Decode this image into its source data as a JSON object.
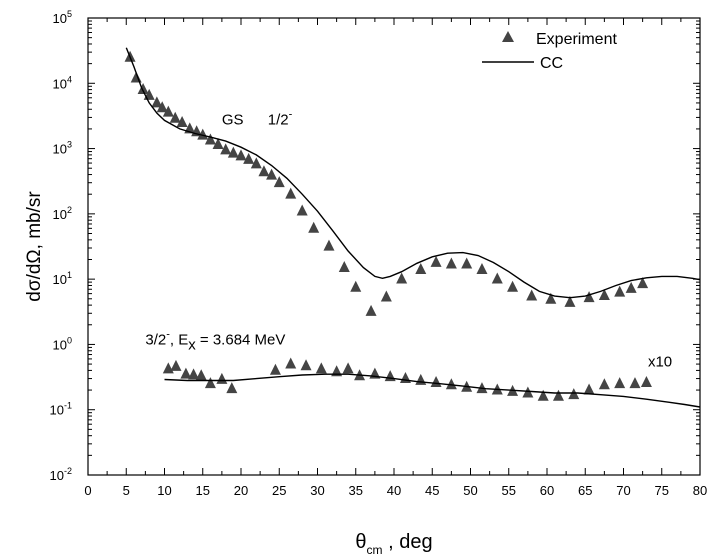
{
  "chart_data": {
    "type": "scatter",
    "xlabel": "θ",
    "xlabel_sub": "cm",
    "xlabel_suffix": " , deg",
    "ylabel": "dσ/dΩ, mb/sr",
    "xlim": [
      0,
      80
    ],
    "ylim": [
      0.01,
      100000
    ],
    "yscale": "log",
    "x_ticks": [
      0,
      5,
      10,
      15,
      20,
      25,
      30,
      35,
      40,
      45,
      50,
      55,
      60,
      65,
      70,
      75,
      80
    ],
    "y_ticks": [
      {
        "value": 0.01,
        "base": "10",
        "exp": "-2"
      },
      {
        "value": 0.1,
        "base": "10",
        "exp": "-1"
      },
      {
        "value": 1,
        "base": "10",
        "exp": "0"
      },
      {
        "value": 10,
        "base": "10",
        "exp": "1"
      },
      {
        "value": 100,
        "base": "10",
        "exp": "2"
      },
      {
        "value": 1000,
        "base": "10",
        "exp": "3"
      },
      {
        "value": 10000,
        "base": "10",
        "exp": "4"
      },
      {
        "value": 100000,
        "base": "10",
        "exp": "5"
      }
    ],
    "legend": {
      "position": "top-right",
      "entries": [
        {
          "label": "Experiment",
          "marker": "triangle"
        },
        {
          "label": "CC",
          "marker": "line"
        }
      ]
    },
    "annotations": {
      "gs": {
        "text": "GS",
        "x": 17.5,
        "y": 2800
      },
      "gs_spin": {
        "text": "1/2",
        "sup": "-",
        "x": 23.5,
        "y": 2800
      },
      "excited": {
        "part1": "3/2",
        "sup": "-",
        "part2": ", E",
        "sub": "x",
        "part3": " = 3.684 MeV",
        "x": 7.5,
        "y": 1.2
      },
      "scale": {
        "text": "x10",
        "x": 73.2,
        "y": 0.55
      }
    },
    "colors": {
      "markers": "#444444",
      "line": "#000000",
      "frame": "#000000"
    },
    "series": [
      {
        "name": "Experiment",
        "kind": "markers",
        "points": [
          [
            5.5,
            25000
          ],
          [
            6.3,
            12000
          ],
          [
            7.2,
            8000
          ],
          [
            8.0,
            6500
          ],
          [
            9.0,
            5000
          ],
          [
            9.7,
            4200
          ],
          [
            10.5,
            3600
          ],
          [
            11.4,
            2900
          ],
          [
            12.3,
            2500
          ],
          [
            13.3,
            2000
          ],
          [
            14.2,
            1800
          ],
          [
            15.0,
            1600
          ],
          [
            16.0,
            1350
          ],
          [
            17.0,
            1150
          ],
          [
            18.0,
            950
          ],
          [
            19.0,
            850
          ],
          [
            20.0,
            770
          ],
          [
            21.0,
            680
          ],
          [
            22.0,
            580
          ],
          [
            23.0,
            440
          ],
          [
            24.0,
            390
          ],
          [
            25.0,
            300
          ],
          [
            26.5,
            200
          ],
          [
            28.0,
            110
          ],
          [
            29.5,
            60
          ],
          [
            31.5,
            32
          ],
          [
            33.5,
            15
          ],
          [
            35.0,
            7.5
          ],
          [
            37.0,
            3.2
          ],
          [
            39.0,
            5.3
          ],
          [
            41.0,
            10
          ],
          [
            43.5,
            14
          ],
          [
            45.5,
            18
          ],
          [
            47.5,
            17
          ],
          [
            49.5,
            17
          ],
          [
            51.5,
            14
          ],
          [
            53.5,
            10
          ],
          [
            55.5,
            7.5
          ],
          [
            58.0,
            5.5
          ],
          [
            60.5,
            4.9
          ],
          [
            63.0,
            4.4
          ],
          [
            65.5,
            5.2
          ],
          [
            67.5,
            5.6
          ],
          [
            69.5,
            6.3
          ],
          [
            71.0,
            7.2
          ],
          [
            72.5,
            8.5
          ],
          [
            10.5,
            0.42
          ],
          [
            11.5,
            0.46
          ],
          [
            12.8,
            0.35
          ],
          [
            13.8,
            0.34
          ],
          [
            14.8,
            0.33
          ],
          [
            16.0,
            0.25
          ],
          [
            17.5,
            0.29
          ],
          [
            18.8,
            0.21
          ],
          [
            24.5,
            0.4
          ],
          [
            26.5,
            0.5
          ],
          [
            28.5,
            0.47
          ],
          [
            30.5,
            0.42
          ],
          [
            32.5,
            0.38
          ],
          [
            34.0,
            0.42
          ],
          [
            35.5,
            0.33
          ],
          [
            37.5,
            0.35
          ],
          [
            39.5,
            0.32
          ],
          [
            41.5,
            0.3
          ],
          [
            43.5,
            0.28
          ],
          [
            45.5,
            0.26
          ],
          [
            47.5,
            0.24
          ],
          [
            49.5,
            0.22
          ],
          [
            51.5,
            0.21
          ],
          [
            53.5,
            0.2
          ],
          [
            55.5,
            0.19
          ],
          [
            57.5,
            0.18
          ],
          [
            59.5,
            0.16
          ],
          [
            61.5,
            0.16
          ],
          [
            63.5,
            0.17
          ],
          [
            65.5,
            0.2
          ],
          [
            67.5,
            0.24
          ],
          [
            69.5,
            0.25
          ],
          [
            71.5,
            0.25
          ],
          [
            73.0,
            0.26
          ]
        ]
      },
      {
        "name": "CC",
        "kind": "line",
        "points": [
          [
            5.0,
            35000
          ],
          [
            6.0,
            18000
          ],
          [
            7.0,
            8500
          ],
          [
            8.0,
            5000
          ],
          [
            9.0,
            3500
          ],
          [
            10.0,
            2700
          ],
          [
            12.0,
            2000
          ],
          [
            14.0,
            1700
          ],
          [
            16.0,
            1500
          ],
          [
            18.0,
            1300
          ],
          [
            20.0,
            1050
          ],
          [
            22.0,
            800
          ],
          [
            24.0,
            550
          ],
          [
            26.0,
            350
          ],
          [
            28.0,
            200
          ],
          [
            30.0,
            110
          ],
          [
            32.0,
            55
          ],
          [
            34.0,
            27
          ],
          [
            36.0,
            15
          ],
          [
            37.5,
            11
          ],
          [
            38.5,
            10.3
          ],
          [
            39.5,
            11
          ],
          [
            41.0,
            13
          ],
          [
            43.0,
            17.5
          ],
          [
            45.0,
            22
          ],
          [
            47.0,
            25
          ],
          [
            49.0,
            25.5
          ],
          [
            51.0,
            23
          ],
          [
            53.0,
            18
          ],
          [
            55.0,
            13
          ],
          [
            57.0,
            9
          ],
          [
            59.0,
            6.5
          ],
          [
            61.0,
            5.5
          ],
          [
            63.0,
            5.2
          ],
          [
            65.0,
            5.5
          ],
          [
            67.0,
            6.5
          ],
          [
            69.0,
            8
          ],
          [
            71.0,
            9.5
          ],
          [
            73.0,
            10.5
          ],
          [
            75.0,
            11
          ],
          [
            77.0,
            11
          ],
          [
            79.0,
            10.3
          ],
          [
            80.0,
            9.8
          ]
        ]
      },
      {
        "name": "CC",
        "kind": "line",
        "points": [
          [
            10.0,
            0.29
          ],
          [
            13.0,
            0.28
          ],
          [
            16.0,
            0.28
          ],
          [
            19.0,
            0.28
          ],
          [
            22.0,
            0.3
          ],
          [
            25.0,
            0.32
          ],
          [
            28.0,
            0.34
          ],
          [
            31.0,
            0.35
          ],
          [
            34.0,
            0.35
          ],
          [
            37.0,
            0.33
          ],
          [
            40.0,
            0.3
          ],
          [
            43.0,
            0.27
          ],
          [
            46.0,
            0.25
          ],
          [
            49.0,
            0.23
          ],
          [
            52.0,
            0.21
          ],
          [
            55.0,
            0.2
          ],
          [
            58.0,
            0.19
          ],
          [
            61.0,
            0.18
          ],
          [
            64.0,
            0.18
          ],
          [
            67.0,
            0.17
          ],
          [
            70.0,
            0.16
          ],
          [
            73.0,
            0.145
          ],
          [
            76.0,
            0.13
          ],
          [
            78.0,
            0.12
          ],
          [
            80.0,
            0.11
          ]
        ]
      }
    ]
  }
}
